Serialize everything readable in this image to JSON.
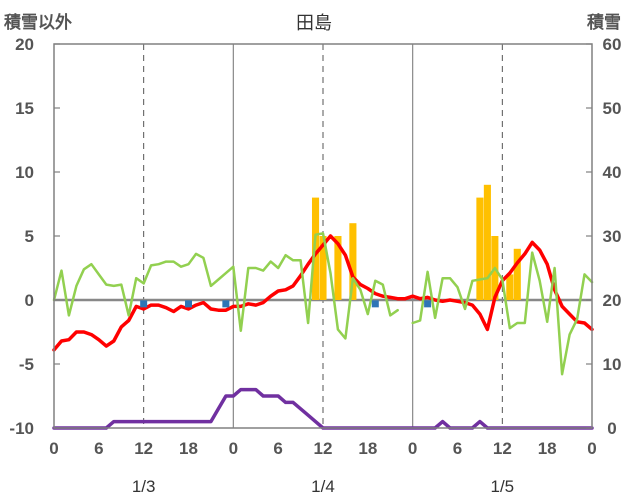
{
  "header": {
    "left_axis_title": "積雪以外",
    "chart_title": "田島",
    "right_axis_title": "積雪"
  },
  "chart_data": {
    "type": "line",
    "title": "田島",
    "ylabel": "積雪以外",
    "y2label": "積雪",
    "ylim": [
      -10,
      20
    ],
    "y2lim": [
      0,
      60
    ],
    "yticks": [
      "20",
      "15",
      "10",
      "5",
      "0",
      "-5",
      "-10"
    ],
    "y2ticks": [
      "60",
      "50",
      "40",
      "30",
      "20",
      "10",
      "0"
    ],
    "x_range_hours": [
      0,
      72
    ],
    "xticks": [
      {
        "h": 0,
        "label": "0"
      },
      {
        "h": 6,
        "label": "6"
      },
      {
        "h": 12,
        "label": "12"
      },
      {
        "h": 18,
        "label": "18"
      },
      {
        "h": 24,
        "label": "0"
      },
      {
        "h": 30,
        "label": "6"
      },
      {
        "h": 36,
        "label": "12"
      },
      {
        "h": 42,
        "label": "18"
      },
      {
        "h": 48,
        "label": "0"
      },
      {
        "h": 54,
        "label": "6"
      },
      {
        "h": 60,
        "label": "12"
      },
      {
        "h": 66,
        "label": "18"
      },
      {
        "h": 72,
        "label": "0"
      }
    ],
    "date_labels": [
      {
        "h": 12,
        "label": "1/3"
      },
      {
        "h": 36,
        "label": "1/4"
      },
      {
        "h": 60,
        "label": "1/5"
      }
    ],
    "grid": {
      "dashed_hours": [
        12,
        36,
        60
      ],
      "solid_hours": [
        24,
        48
      ],
      "y_tick_marks": true
    },
    "colors": {
      "temperature": "#ff0000",
      "wind": "#92d050",
      "precipitation": "#ffc000",
      "snow_depth": "#7030a0",
      "marker": "#2e75b6",
      "zero_line": "#888888",
      "frame": "#808080"
    },
    "series": [
      {
        "key": "temperature",
        "hours": [
          0,
          1,
          2,
          3,
          4,
          5,
          6,
          7,
          8,
          9,
          10,
          11,
          12,
          13,
          14,
          15,
          16,
          17,
          18,
          19,
          20,
          21,
          22,
          23,
          24,
          25,
          26,
          27,
          28,
          29,
          30,
          31,
          32,
          33,
          34,
          35,
          36,
          37,
          38,
          39,
          40,
          41,
          42,
          43,
          44,
          45,
          46,
          47,
          48,
          49,
          50,
          51,
          52,
          53,
          54,
          55,
          56,
          57,
          58,
          59,
          60,
          61,
          62,
          63,
          64,
          65,
          66,
          67,
          68,
          69,
          70,
          71,
          72
        ],
        "values": [
          -3.9,
          -3.2,
          -3.1,
          -2.5,
          -2.5,
          -2.7,
          -3.1,
          -3.6,
          -3.2,
          -2.1,
          -1.6,
          -0.5,
          -0.7,
          -0.4,
          -0.4,
          -0.6,
          -0.9,
          -0.5,
          -0.7,
          -0.4,
          -0.2,
          -0.7,
          -0.8,
          -0.8,
          -0.5,
          -0.5,
          -0.3,
          -0.4,
          -0.2,
          0.3,
          0.7,
          0.8,
          1.1,
          1.9,
          2.8,
          3.6,
          4.3,
          5.0,
          4.4,
          3.5,
          1.8,
          1.2,
          0.9,
          0.5,
          0.3,
          0.2,
          0.1,
          0.1,
          0.3,
          0.1,
          0.2,
          0.0,
          -0.1,
          0.0,
          -0.1,
          -0.2,
          -0.4,
          -1.1,
          -2.3,
          0.2,
          1.5,
          2.1,
          2.9,
          3.6,
          4.5,
          3.9,
          2.8,
          0.8,
          -0.5,
          -1.1,
          -1.7,
          -1.8,
          -2.3
        ]
      },
      {
        "key": "wind",
        "hours": [
          0,
          1,
          2,
          3,
          4,
          5,
          6,
          7,
          8,
          9,
          10,
          11,
          12,
          13,
          14,
          15,
          16,
          17,
          18,
          19,
          20,
          21,
          22,
          23,
          24,
          25,
          26,
          27,
          28,
          29,
          30,
          31,
          32,
          33,
          34,
          35,
          36,
          37,
          38,
          39,
          40,
          41,
          42,
          43,
          44,
          45,
          46,
          47,
          48,
          49,
          50,
          51,
          52,
          53,
          54,
          55,
          56,
          57,
          58,
          59,
          60,
          61,
          62,
          63,
          64,
          65,
          66,
          67,
          68,
          69,
          70,
          71,
          72
        ],
        "values": [
          0,
          2.3,
          -1.2,
          1.1,
          2.4,
          2.8,
          2.0,
          1.2,
          1.1,
          1.2,
          -1.2,
          1.7,
          1.3,
          2.7,
          2.8,
          3.0,
          3.0,
          2.6,
          2.8,
          3.6,
          3.3,
          1.1,
          1.6,
          2.1,
          2.6,
          -2.4,
          2.5,
          2.5,
          2.3,
          3.0,
          2.5,
          3.5,
          3.1,
          3.1,
          -1.8,
          5.1,
          5.2,
          2.1,
          -2.3,
          -3.0,
          1.7,
          0.8,
          -1.1,
          1.5,
          1.2,
          -1.2,
          -0.8,
          null,
          -1.8,
          -1.6,
          2.2,
          -1.4,
          1.7,
          1.7,
          1.0,
          -0.7,
          1.5,
          1.6,
          1.7,
          2.5,
          1.6,
          -2.2,
          -1.8,
          -1.8,
          3.7,
          1.5,
          -1.7,
          2.5,
          -5.8,
          -2.7,
          -1.5,
          2.0,
          1.4
        ]
      },
      {
        "key": "snow_depth",
        "hours": [
          0,
          1,
          2,
          3,
          4,
          5,
          6,
          7,
          8,
          9,
          10,
          11,
          12,
          13,
          14,
          15,
          16,
          17,
          18,
          19,
          20,
          21,
          22,
          23,
          24,
          25,
          26,
          27,
          28,
          29,
          30,
          31,
          32,
          33,
          34,
          35,
          36,
          37,
          38,
          39,
          40,
          41,
          42,
          43,
          44,
          45,
          46,
          47,
          48,
          49,
          50,
          51,
          52,
          53,
          54,
          55,
          56,
          57,
          58,
          59,
          60,
          61,
          62,
          63,
          64,
          65,
          66,
          67,
          68,
          69,
          70,
          71,
          72
        ],
        "values": [
          0,
          0,
          0,
          0,
          0,
          0,
          0,
          0,
          1,
          1,
          1,
          1,
          1,
          1,
          1,
          1,
          1,
          1,
          1,
          1,
          1,
          1,
          3,
          5,
          5,
          6,
          6,
          6,
          5,
          5,
          5,
          4,
          4,
          3,
          2,
          1,
          0,
          0,
          0,
          0,
          0,
          0,
          0,
          0,
          0,
          0,
          0,
          0,
          0,
          0,
          0,
          0,
          1,
          0,
          0,
          0,
          0,
          1,
          0,
          0,
          0,
          0,
          0,
          0,
          0,
          0,
          0,
          0,
          0,
          0,
          0,
          0,
          0
        ]
      }
    ],
    "precipitation_bars": [
      {
        "h": 35,
        "value": 8.0
      },
      {
        "h": 36,
        "value": 5.0
      },
      {
        "h": 38,
        "value": 5.0
      },
      {
        "h": 40,
        "value": 6.0
      },
      {
        "h": 57,
        "value": 8.0
      },
      {
        "h": 58,
        "value": 9.0
      },
      {
        "h": 59,
        "value": 5.0
      },
      {
        "h": 61,
        "value": 2.0
      },
      {
        "h": 62,
        "value": 4.0
      }
    ],
    "markers": [
      {
        "h": 12,
        "value": -0.3
      },
      {
        "h": 18,
        "value": -0.3
      },
      {
        "h": 23,
        "value": -0.3
      },
      {
        "h": 43,
        "value": -0.3
      },
      {
        "h": 50,
        "value": -0.3
      }
    ]
  }
}
